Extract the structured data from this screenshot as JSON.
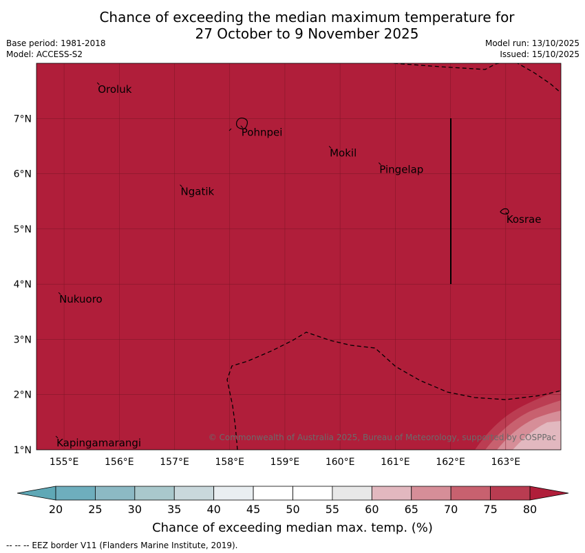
{
  "title": {
    "line1": "Chance of exceeding the median maximum temperature for",
    "line2": "27 October to 9 November 2025"
  },
  "meta": {
    "base_period": "Base period: 1981-2018",
    "model": "Model: ACCESS-S2",
    "model_run": "Model run: 13/10/2025",
    "issued": "Issued: 15/10/2025"
  },
  "map": {
    "lon_range": [
      154.5,
      164
    ],
    "lat_range": [
      1,
      8
    ],
    "lon_ticks": [
      "155°E",
      "156°E",
      "157°E",
      "158°E",
      "159°E",
      "160°E",
      "161°E",
      "162°E",
      "163°E"
    ],
    "lat_ticks": [
      "1°N",
      "2°N",
      "3°N",
      "4°N",
      "5°N",
      "6°N",
      "7°N"
    ],
    "background_color": "#b01e3a",
    "places": [
      {
        "name": "Oroluk",
        "lon": 155.6,
        "lat": 7.65
      },
      {
        "name": "Pohnpei",
        "lon": 158.2,
        "lat": 6.87
      },
      {
        "name": "Mokil",
        "lon": 159.8,
        "lat": 6.5
      },
      {
        "name": "Pingelap",
        "lon": 160.7,
        "lat": 6.2
      },
      {
        "name": "Ngatik",
        "lon": 157.1,
        "lat": 5.8
      },
      {
        "name": "Kosrae",
        "lon": 163.0,
        "lat": 5.3
      },
      {
        "name": "Nukuoro",
        "lon": 154.9,
        "lat": 3.85
      },
      {
        "name": "Kapingamarangi",
        "lon": 154.85,
        "lat": 1.25
      }
    ],
    "copyright": "© Commonwealth of Australia 2025, Bureau of Meteorology, supported by COSPPac"
  },
  "colorbar": {
    "label": "Chance of exceeding median max. temp. (%)",
    "ticks": [
      "20",
      "25",
      "30",
      "35",
      "40",
      "45",
      "50",
      "55",
      "60",
      "65",
      "70",
      "75",
      "80"
    ],
    "colors": [
      "#6eaebd",
      "#8cb9c4",
      "#a9c8cc",
      "#c9d8dc",
      "#e9eef1",
      "#ffffff",
      "#ffffff",
      "#e8e8e8",
      "#e2b8bf",
      "#d68e98",
      "#c8616f",
      "#b93c51"
    ],
    "under_color": "#5fa8b6",
    "over_color": "#b01e3a"
  },
  "footnote": "--  --  -- EEZ border V11 (Flanders Marine Institute, 2019)."
}
